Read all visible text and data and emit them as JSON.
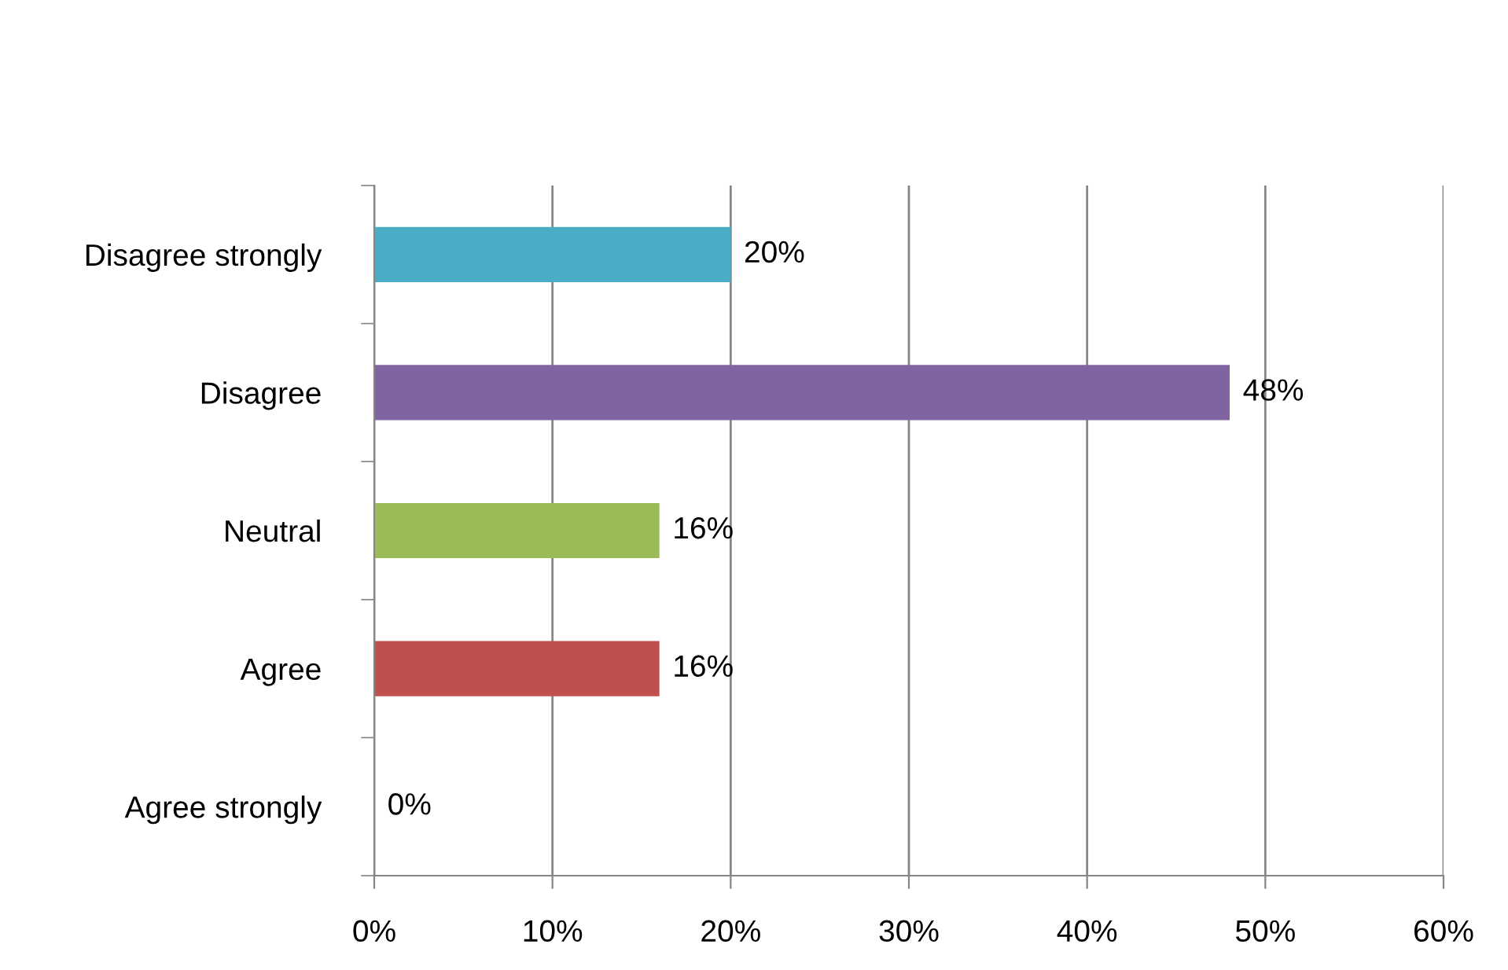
{
  "chart_data": {
    "type": "bar",
    "orientation": "horizontal",
    "categories": [
      "Disagree strongly",
      "Disagree",
      "Neutral",
      "Agree",
      "Agree strongly"
    ],
    "values": [
      20,
      48,
      16,
      16,
      0
    ],
    "colors": [
      "#4bacc6",
      "#8064a2",
      "#9bbb59",
      "#c0504d",
      "#4f81bd"
    ],
    "value_labels": [
      "20%",
      "48%",
      "16%",
      "16%",
      "0%"
    ],
    "xlim": [
      0,
      60
    ],
    "xticks": [
      {
        "value": 0,
        "label": "0%"
      },
      {
        "value": 10,
        "label": "10%"
      },
      {
        "value": 20,
        "label": "20%"
      },
      {
        "value": 30,
        "label": "30%"
      },
      {
        "value": 40,
        "label": "40%"
      },
      {
        "value": 50,
        "label": "50%"
      },
      {
        "value": 60,
        "label": "60%"
      }
    ],
    "grid": "x",
    "legend": false
  }
}
